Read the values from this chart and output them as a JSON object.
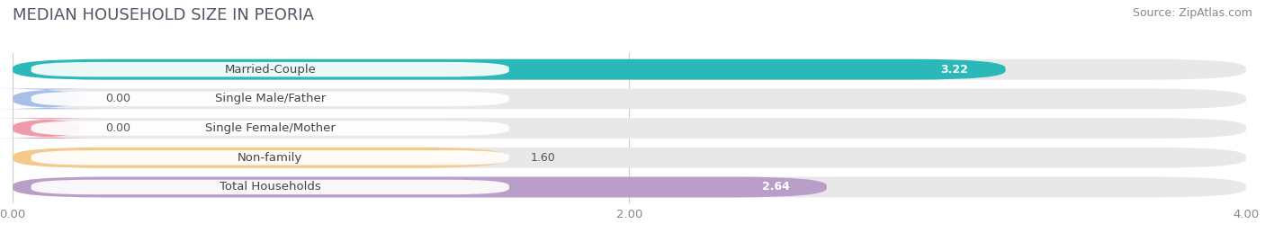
{
  "title": "MEDIAN HOUSEHOLD SIZE IN PEORIA",
  "source": "Source: ZipAtlas.com",
  "categories": [
    "Married-Couple",
    "Single Male/Father",
    "Single Female/Mother",
    "Non-family",
    "Total Households"
  ],
  "values": [
    3.22,
    0.0,
    0.0,
    1.6,
    2.64
  ],
  "bar_colors": [
    "#2ab8b8",
    "#a8bfe8",
    "#f09baa",
    "#f5c98a",
    "#b89ec8"
  ],
  "value_in_bar": [
    true,
    false,
    false,
    false,
    true
  ],
  "xlim": [
    0,
    4.0
  ],
  "xticks": [
    0.0,
    2.0,
    4.0
  ],
  "xtick_labels": [
    "0.00",
    "2.00",
    "4.00"
  ],
  "background_color": "#ffffff",
  "bar_background_color": "#e8e8e8",
  "gap_color": "#ffffff",
  "title_fontsize": 13,
  "source_fontsize": 9,
  "label_fontsize": 9.5,
  "value_fontsize": 9
}
